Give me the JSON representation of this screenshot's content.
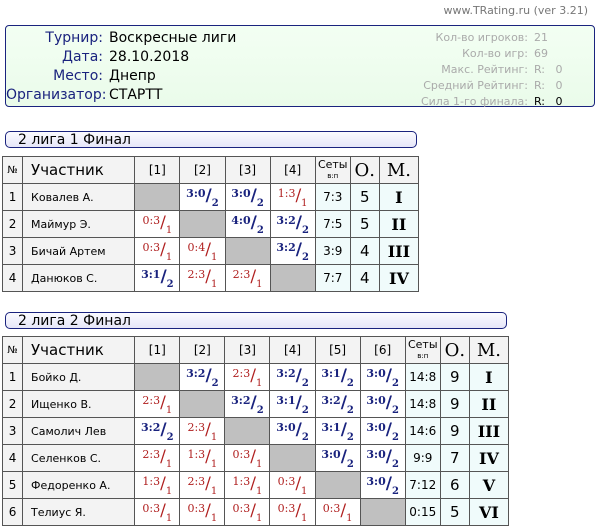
{
  "site": "www.TRating.ru (ver 3.21)",
  "info": {
    "left": [
      {
        "k": "Турнир:",
        "v": "Воскресные лиги"
      },
      {
        "k": "Дата:",
        "v": "28.10.2018"
      },
      {
        "k": "Место:",
        "v": "Днепр"
      },
      {
        "k": "Организатор:",
        "v": "СТАРТТ"
      }
    ],
    "right": [
      {
        "k": "Кол-во игроков:",
        "v": "21"
      },
      {
        "k": "Кол-во игр:",
        "v": "69"
      },
      {
        "k": "Макс. Рейтинг:",
        "v": "R:   0"
      },
      {
        "k": "Средний Рейтинг:",
        "v": "R:   0"
      },
      {
        "k": "Сила 1-го финала:",
        "v": "R:   0"
      }
    ]
  },
  "headers": {
    "num": "№",
    "player": "Участник",
    "sets": "Сеты",
    "sets_sub": "в:п",
    "points": "О.",
    "place": "М."
  },
  "groups": [
    {
      "title": "2 лига 1 Финал",
      "rows": [
        {
          "n": "1",
          "name": "Ковалев А.",
          "res": [
            "",
            "3:0/2",
            "3:0/2",
            "1:3/1"
          ],
          "sets": "7:3",
          "o": "5",
          "m": "I"
        },
        {
          "n": "2",
          "name": "Маймур Э.",
          "res": [
            "0:3/1",
            "",
            "4:0/2",
            "3:2/2"
          ],
          "sets": "7:5",
          "o": "5",
          "m": "II"
        },
        {
          "n": "3",
          "name": "Бичай Артем",
          "res": [
            "0:3/1",
            "0:4/1",
            "",
            "3:2/2"
          ],
          "sets": "3:9",
          "o": "4",
          "m": "III"
        },
        {
          "n": "4",
          "name": "Данюков С.",
          "res": [
            "3:1/2",
            "2:3/1",
            "2:3/1",
            ""
          ],
          "sets": "7:7",
          "o": "4",
          "m": "IV"
        }
      ]
    },
    {
      "title": "2 лига 2 Финал",
      "rows": [
        {
          "n": "1",
          "name": "Бойко Д.",
          "res": [
            "",
            "3:2/2",
            "2:3/1",
            "3:2/2",
            "3:1/2",
            "3:0/2"
          ],
          "sets": "14:8",
          "o": "9",
          "m": "I"
        },
        {
          "n": "2",
          "name": "Ищенко В.",
          "res": [
            "2:3/1",
            "",
            "3:2/2",
            "3:1/2",
            "3:2/2",
            "3:0/2"
          ],
          "sets": "14:8",
          "o": "9",
          "m": "II"
        },
        {
          "n": "3",
          "name": "Самолич Лев",
          "res": [
            "3:2/2",
            "2:3/1",
            "",
            "3:0/2",
            "3:1/2",
            "3:0/2"
          ],
          "sets": "14:6",
          "o": "9",
          "m": "III"
        },
        {
          "n": "4",
          "name": "Селенков С.",
          "res": [
            "2:3/1",
            "1:3/1",
            "0:3/1",
            "",
            "3:0/2",
            "3:0/2"
          ],
          "sets": "9:9",
          "o": "7",
          "m": "IV"
        },
        {
          "n": "5",
          "name": "Федоренко А.",
          "res": [
            "1:3/1",
            "2:3/1",
            "1:3/1",
            "0:3/1",
            "",
            "3:0/2"
          ],
          "sets": "7:12",
          "o": "6",
          "m": "V"
        },
        {
          "n": "6",
          "name": "Телиус Я.",
          "res": [
            "0:3/1",
            "0:3/1",
            "0:3/1",
            "0:3/1",
            "0:3/1",
            ""
          ],
          "sets": "0:15",
          "o": "5",
          "m": "VI"
        }
      ]
    }
  ]
}
